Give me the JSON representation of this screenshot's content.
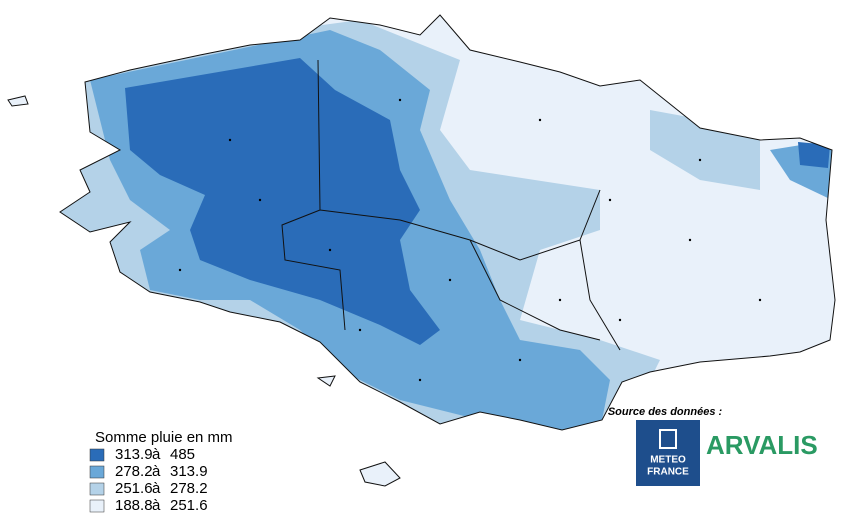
{
  "legend": {
    "title": "Somme pluie en mm",
    "classes": [
      {
        "from": 313.9,
        "sep": "à",
        "to": 485,
        "color": "#2a6cb8"
      },
      {
        "from": 278.2,
        "sep": "à",
        "to": 313.9,
        "color": "#6aa8d8"
      },
      {
        "from": 251.6,
        "sep": "à",
        "to": 278.2,
        "color": "#b4d2e8"
      },
      {
        "from": 188.8,
        "sep": "à",
        "to": 251.6,
        "color": "#e9f1fa"
      }
    ]
  },
  "source": {
    "label": "Source des données :",
    "meteo": [
      "METEO",
      "FRANCE"
    ],
    "arvalis": "ARVALIS"
  }
}
